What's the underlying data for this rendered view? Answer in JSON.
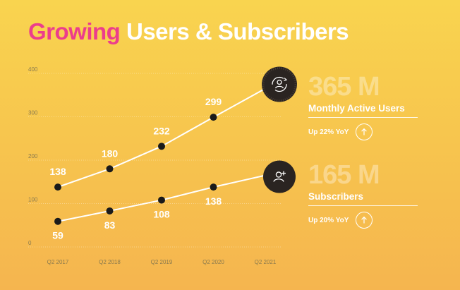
{
  "title": {
    "highlight": "Growing",
    "rest": "Users & Subscribers"
  },
  "stats": {
    "mau": {
      "value": "365 M",
      "label": "Monthly Active Users",
      "yoy": "Up 22% YoY"
    },
    "subs": {
      "value": "165 M",
      "label": "Subscribers",
      "yoy": "Up 20% YoY"
    }
  },
  "colors": {
    "highlight": "#EC3D8C",
    "line": "#FFFFFF",
    "point": "#1A1A1A",
    "icon_bg": "#2A2421"
  },
  "chart_data": {
    "type": "line",
    "title": "Growing Users & Subscribers",
    "xlabel": "",
    "ylabel": "",
    "categories": [
      "Q2  2017",
      "Q2  2018",
      "Q2  2019",
      "Q2  2020",
      "Q2 2021"
    ],
    "yticks": [
      0,
      100,
      200,
      300,
      400
    ],
    "ylim": [
      0,
      400
    ],
    "grid": true,
    "series": [
      {
        "name": "Monthly Active Users",
        "values": [
          138,
          180,
          232,
          299,
          365
        ],
        "labels": [
          "138",
          "180",
          "232",
          "299",
          ""
        ],
        "icon": "user-refresh-icon"
      },
      {
        "name": "Subscribers",
        "values": [
          59,
          83,
          108,
          138,
          165
        ],
        "labels": [
          "59",
          "83",
          "108",
          "138",
          ""
        ],
        "icon": "user-plus-icon"
      }
    ]
  }
}
